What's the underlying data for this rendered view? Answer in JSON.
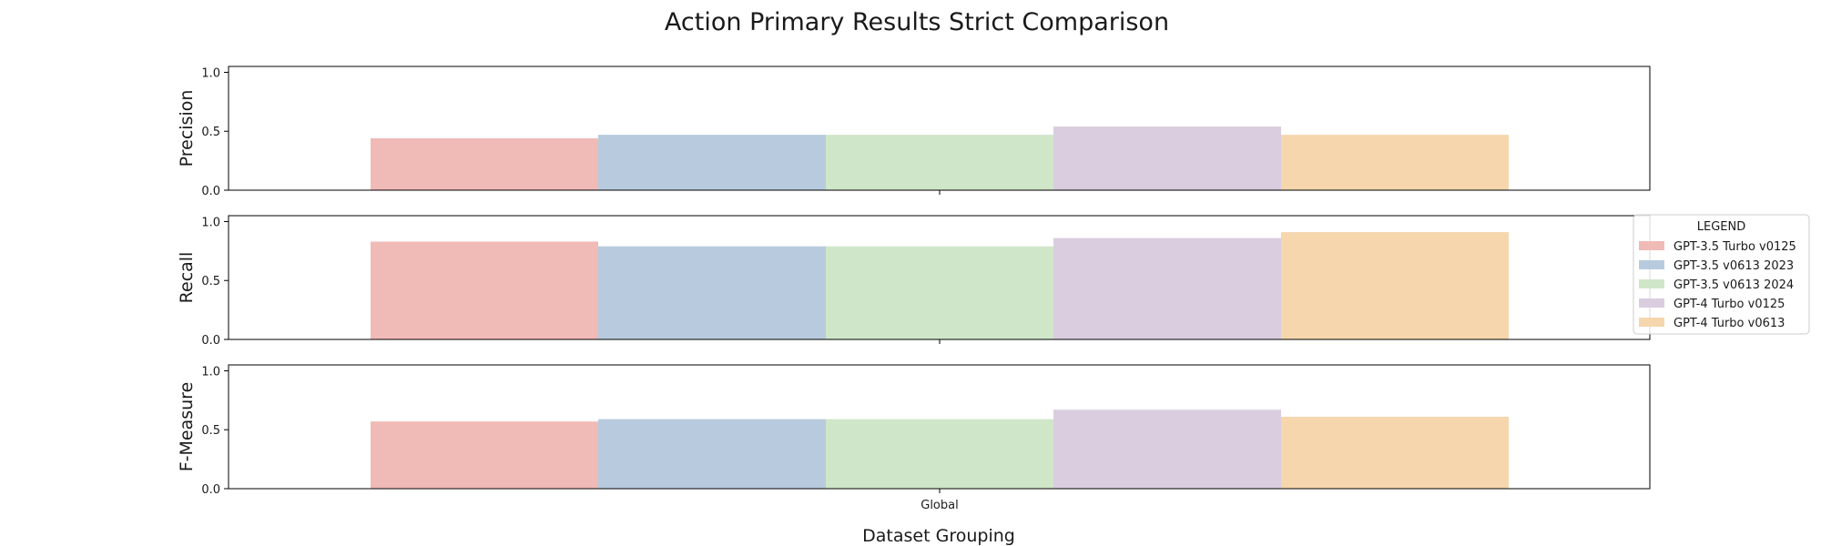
{
  "figure": {
    "title": "Action Primary Results Strict Comparison",
    "xlabel": "Dataset Grouping"
  },
  "legend": {
    "title": "LEGEND",
    "placement": "right"
  },
  "chart_data": [
    {
      "type": "bar",
      "ylabel": "Precision",
      "categories": [
        "Global"
      ],
      "ylim": [
        0,
        1.05
      ],
      "yticks": [
        "0.0",
        "0.5",
        "1.0"
      ],
      "series": [
        {
          "name": "GPT-3.5 Turbo v0125",
          "color": "#f0bab7",
          "values": [
            0.44
          ]
        },
        {
          "name": "GPT-3.5 v0613 2023",
          "color": "#b8cbde",
          "values": [
            0.47
          ]
        },
        {
          "name": "GPT-3.5 v0613 2024",
          "color": "#d0e6c9",
          "values": [
            0.47
          ]
        },
        {
          "name": "GPT-4 Turbo v0125",
          "color": "#dacde0",
          "values": [
            0.54
          ]
        },
        {
          "name": "GPT-4 Turbo v0613",
          "color": "#f5d6ad",
          "values": [
            0.47
          ]
        }
      ]
    },
    {
      "type": "bar",
      "ylabel": "Recall",
      "categories": [
        "Global"
      ],
      "ylim": [
        0,
        1.05
      ],
      "yticks": [
        "0.0",
        "0.5",
        "1.0"
      ],
      "series": [
        {
          "name": "GPT-3.5 Turbo v0125",
          "color": "#f0bab7",
          "values": [
            0.83
          ]
        },
        {
          "name": "GPT-3.5 v0613 2023",
          "color": "#b8cbde",
          "values": [
            0.79
          ]
        },
        {
          "name": "GPT-3.5 v0613 2024",
          "color": "#d0e6c9",
          "values": [
            0.79
          ]
        },
        {
          "name": "GPT-4 Turbo v0125",
          "color": "#dacde0",
          "values": [
            0.86
          ]
        },
        {
          "name": "GPT-4 Turbo v0613",
          "color": "#f5d6ad",
          "values": [
            0.91
          ]
        }
      ]
    },
    {
      "type": "bar",
      "ylabel": "F-Measure",
      "categories": [
        "Global"
      ],
      "ylim": [
        0,
        1.05
      ],
      "yticks": [
        "0.0",
        "0.5",
        "1.0"
      ],
      "series": [
        {
          "name": "GPT-3.5 Turbo v0125",
          "color": "#f0bab7",
          "values": [
            0.57
          ]
        },
        {
          "name": "GPT-3.5 v0613 2023",
          "color": "#b8cbde",
          "values": [
            0.59
          ]
        },
        {
          "name": "GPT-3.5 v0613 2024",
          "color": "#d0e6c9",
          "values": [
            0.59
          ]
        },
        {
          "name": "GPT-4 Turbo v0125",
          "color": "#dacde0",
          "values": [
            0.67
          ]
        },
        {
          "name": "GPT-4 Turbo v0613",
          "color": "#f5d6ad",
          "values": [
            0.61
          ]
        }
      ]
    }
  ]
}
